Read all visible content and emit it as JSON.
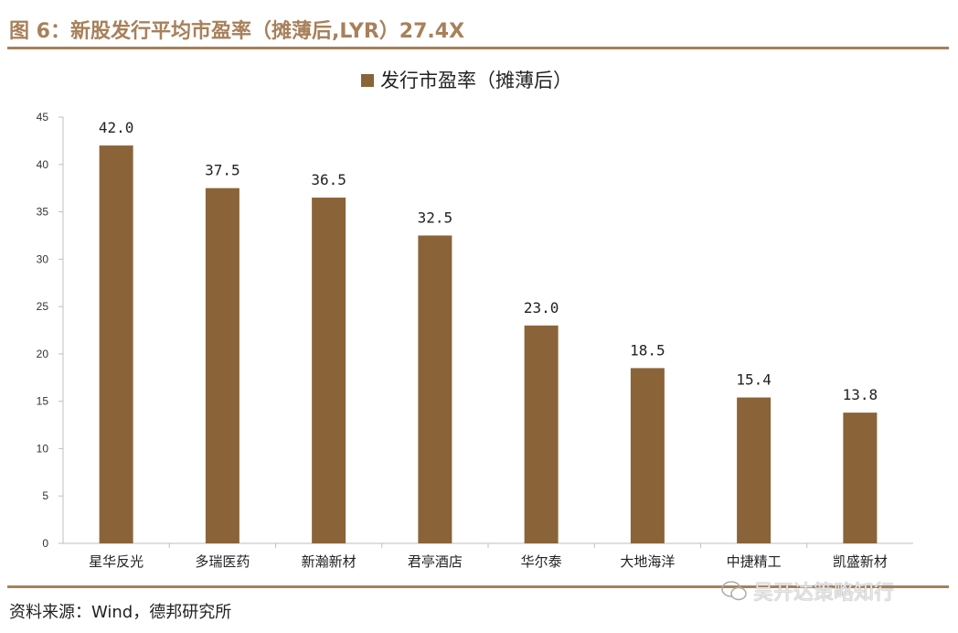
{
  "figure": {
    "title": "图 6：新股发行平均市盈率（摊薄后,LYR）27.4X",
    "source": "资料来源：Wind，德邦研究所",
    "watermark": "吴开达策略知行"
  },
  "colors": {
    "accent": "#a8805a",
    "bar": "#8a6438",
    "axis": "#bfbfbf"
  },
  "chart_data": {
    "type": "bar",
    "title": "",
    "legend": [
      {
        "name": "发行市盈率（摊薄后）",
        "placement": "top-center"
      }
    ],
    "categories": [
      "星华反光",
      "多瑞医药",
      "新瀚新材",
      "君亭酒店",
      "华尔泰",
      "大地海洋",
      "中捷精工",
      "凯盛新材"
    ],
    "values": [
      42.0,
      37.5,
      36.5,
      32.5,
      23.0,
      18.5,
      15.4,
      13.8
    ],
    "value_labels": [
      "42.0",
      "37.5",
      "36.5",
      "32.5",
      "23.0",
      "18.5",
      "15.4",
      "13.8"
    ],
    "yticks": [
      "0",
      "5",
      "10",
      "15",
      "20",
      "25",
      "30",
      "35",
      "40",
      "45"
    ],
    "ylim": [
      0,
      45
    ],
    "xlabel": "",
    "ylabel": "",
    "grid": false
  }
}
